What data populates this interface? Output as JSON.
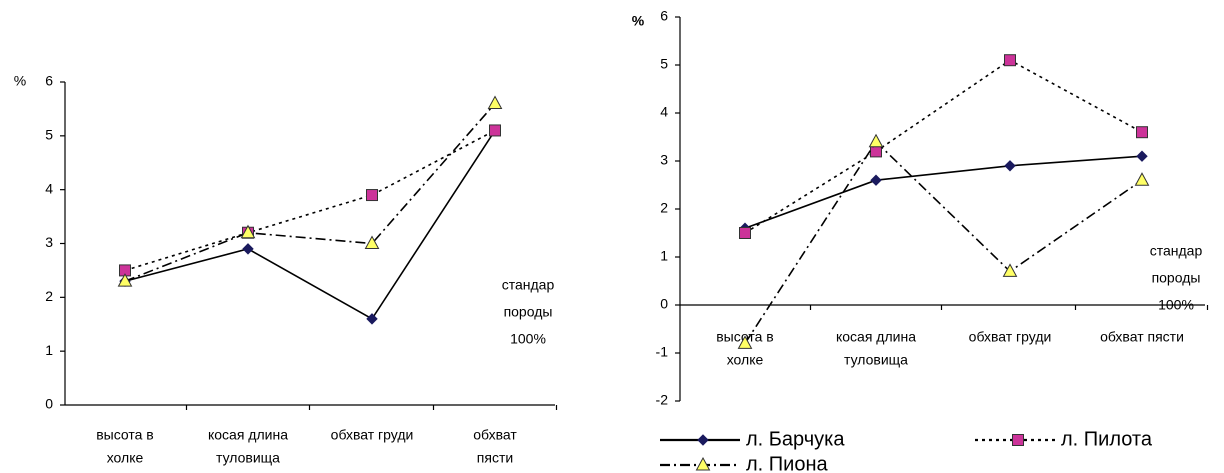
{
  "chart_data": [
    {
      "type": "line",
      "y_label": "%",
      "categories": [
        [
          "высота в",
          "холке"
        ],
        [
          "косая длина",
          "туловища"
        ],
        [
          "обхват груди"
        ],
        [
          "обхват",
          "пясти"
        ]
      ],
      "ylim": [
        0,
        6
      ],
      "yticks": [
        0,
        1,
        2,
        3,
        4,
        5,
        6
      ],
      "annotation": [
        "стандар",
        "породы",
        "100%"
      ],
      "series": [
        {
          "name": "л. Барчука",
          "color": "#1a1a5e",
          "marker": "diamond",
          "dash": "solid",
          "values": [
            2.3,
            2.9,
            1.6,
            5.1
          ]
        },
        {
          "name": "л. Пилота",
          "color": "#cc3399",
          "marker": "square",
          "dash": "dotted",
          "values": [
            2.5,
            3.2,
            3.9,
            5.1
          ]
        },
        {
          "name": "л. Пиона",
          "color": "#ffff66",
          "marker": "triangle",
          "dash": "dashdot",
          "values": [
            2.3,
            3.2,
            3.0,
            5.6
          ]
        }
      ]
    },
    {
      "type": "line",
      "y_label": "%",
      "categories": [
        [
          "высота в",
          "холке"
        ],
        [
          "косая длина",
          "туловища"
        ],
        [
          "обхват груди"
        ],
        [
          "обхват пясти"
        ]
      ],
      "ylim": [
        -2,
        6
      ],
      "yticks": [
        -2,
        -1,
        0,
        1,
        2,
        3,
        4,
        5,
        6
      ],
      "annotation": [
        "стандар",
        "породы",
        "100%"
      ],
      "legend": "bottom",
      "series": [
        {
          "name": "л. Барчука",
          "color": "#1a1a5e",
          "marker": "diamond",
          "dash": "solid",
          "values": [
            1.6,
            2.6,
            2.9,
            3.1
          ]
        },
        {
          "name": "л. Пилота",
          "color": "#cc3399",
          "marker": "square",
          "dash": "dotted",
          "values": [
            1.5,
            3.2,
            5.1,
            3.6
          ]
        },
        {
          "name": "л. Пиона",
          "color": "#ffff66",
          "marker": "triangle",
          "dash": "dashdot",
          "values": [
            -0.8,
            3.4,
            0.7,
            2.6
          ]
        }
      ]
    }
  ]
}
